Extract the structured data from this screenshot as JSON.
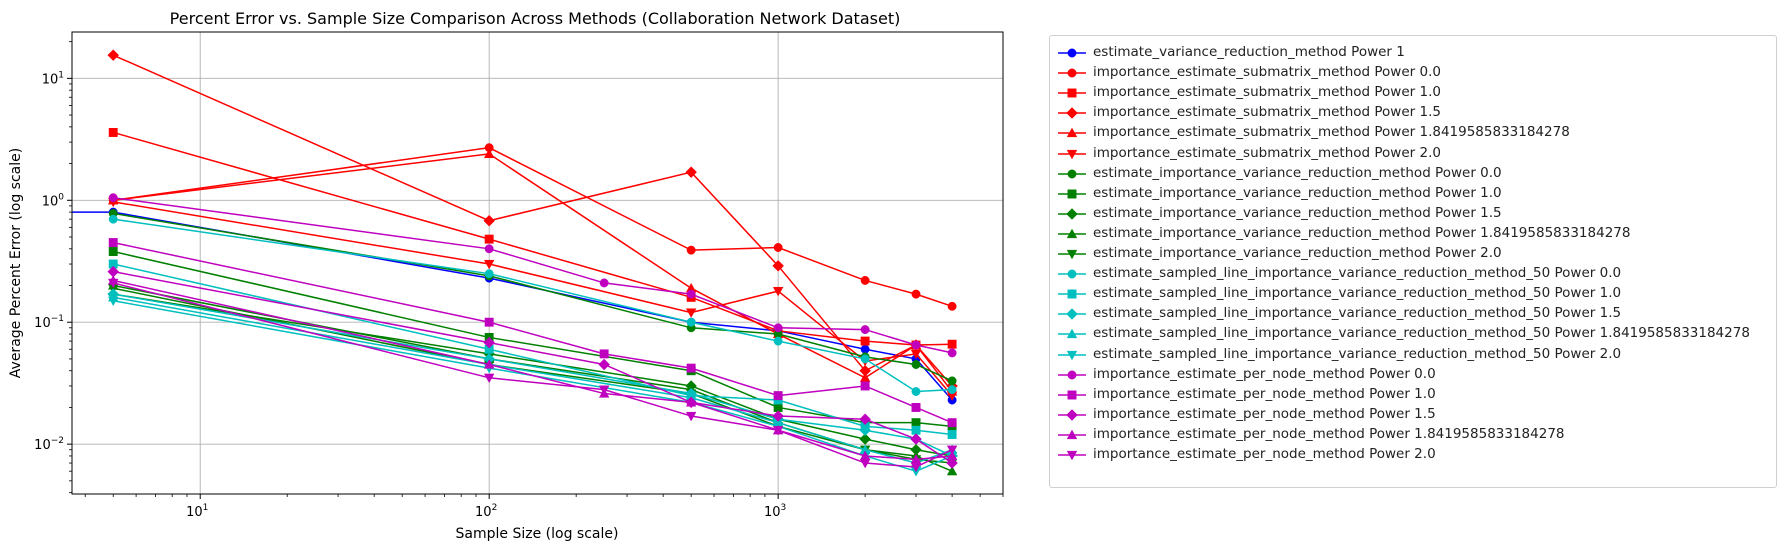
{
  "chart_data": {
    "type": "line",
    "title": "Percent Error vs. Sample Size Comparison Across Methods (Collaboration Network Dataset)",
    "xlabel": "Sample Size (log scale)",
    "ylabel": "Average Percent Error (log scale)",
    "xscale": "log",
    "yscale": "log",
    "xlim": [
      3.6,
      6000
    ],
    "ylim": [
      0.0039,
      24
    ],
    "grid": true,
    "legend_position": "outside-right",
    "x_ticks": [
      {
        "value": 10,
        "base": "10",
        "exp": "1"
      },
      {
        "value": 100,
        "base": "10",
        "exp": "2"
      },
      {
        "value": 1000,
        "base": "10",
        "exp": "3"
      }
    ],
    "y_ticks": [
      {
        "value": 0.01,
        "base": "10",
        "exp": "−2"
      },
      {
        "value": 0.1,
        "base": "10",
        "exp": "−1"
      },
      {
        "value": 1,
        "base": "10",
        "exp": "0"
      },
      {
        "value": 10,
        "base": "10",
        "exp": "1"
      }
    ],
    "series": [
      {
        "name": "estimate_variance_reduction_method Power 1",
        "color": "#0000ff",
        "marker": "circle",
        "x": [
          1,
          5,
          100,
          500,
          1000,
          2000,
          3000,
          4000
        ],
        "y": [
          0.8,
          0.8,
          0.23,
          0.1,
          0.085,
          0.06,
          0.05,
          0.023
        ]
      },
      {
        "name": "importance_estimate_submatrix_method Power 0.0",
        "color": "#ff0000",
        "marker": "circle",
        "x": [
          5,
          100,
          500,
          1000,
          2000,
          3000,
          4000
        ],
        "y": [
          1.0,
          2.7,
          0.39,
          0.41,
          0.22,
          0.17,
          0.135
        ]
      },
      {
        "name": "importance_estimate_submatrix_method Power 1.0",
        "color": "#ff0000",
        "marker": "square",
        "x": [
          5,
          100,
          500,
          1000,
          2000,
          3000,
          4000
        ],
        "y": [
          3.6,
          0.48,
          0.16,
          0.085,
          0.07,
          0.065,
          0.066
        ]
      },
      {
        "name": "importance_estimate_submatrix_method Power 1.5",
        "color": "#ff0000",
        "marker": "diamond",
        "x": [
          5,
          100,
          500,
          1000,
          2000,
          3000,
          4000
        ],
        "y": [
          15.5,
          0.68,
          1.7,
          0.29,
          0.04,
          0.065,
          0.03
        ]
      },
      {
        "name": "importance_estimate_submatrix_method Power 1.8419585833184278",
        "color": "#ff0000",
        "marker": "triangle-up",
        "x": [
          5,
          100,
          500,
          1000,
          2000,
          3000,
          4000
        ],
        "y": [
          1.0,
          2.4,
          0.19,
          0.08,
          0.035,
          0.065,
          0.027
        ]
      },
      {
        "name": "importance_estimate_submatrix_method Power 2.0",
        "color": "#ff0000",
        "marker": "triangle-down",
        "x": [
          5,
          100,
          500,
          1000,
          2000,
          3000,
          4000
        ],
        "y": [
          0.97,
          0.3,
          0.12,
          0.18,
          0.048,
          0.055,
          0.025
        ]
      },
      {
        "name": "estimate_importance_variance_reduction_method Power 0.0",
        "color": "#008000",
        "marker": "circle",
        "x": [
          5,
          100,
          500,
          1000,
          2000,
          3000,
          4000
        ],
        "y": [
          0.78,
          0.24,
          0.09,
          0.08,
          0.052,
          0.045,
          0.033
        ]
      },
      {
        "name": "estimate_importance_variance_reduction_method Power 1.0",
        "color": "#008000",
        "marker": "square",
        "x": [
          5,
          100,
          500,
          1000,
          2000,
          3000,
          4000
        ],
        "y": [
          0.38,
          0.075,
          0.04,
          0.02,
          0.015,
          0.015,
          0.014
        ]
      },
      {
        "name": "estimate_importance_variance_reduction_method Power 1.5",
        "color": "#008000",
        "marker": "diamond",
        "x": [
          5,
          100,
          500,
          1000,
          2000,
          3000,
          4000
        ],
        "y": [
          0.17,
          0.055,
          0.03,
          0.016,
          0.011,
          0.009,
          0.008
        ]
      },
      {
        "name": "estimate_importance_variance_reduction_method Power 1.8419585833184278",
        "color": "#008000",
        "marker": "triangle-up",
        "x": [
          5,
          100,
          500,
          1000,
          2000,
          3000,
          4000
        ],
        "y": [
          0.2,
          0.05,
          0.028,
          0.015,
          0.009,
          0.008,
          0.006
        ]
      },
      {
        "name": "estimate_importance_variance_reduction_method Power 2.0",
        "color": "#008000",
        "marker": "triangle-down",
        "x": [
          5,
          100,
          500,
          1000,
          2000,
          3000,
          4000
        ],
        "y": [
          0.19,
          0.045,
          0.026,
          0.014,
          0.009,
          0.0075,
          0.007
        ]
      },
      {
        "name": "estimate_sampled_line_importance_variance_reduction_method_50 Power 0.0",
        "color": "#00bfbf",
        "marker": "circle",
        "x": [
          5,
          100,
          500,
          1000,
          2000,
          3000,
          4000
        ],
        "y": [
          0.7,
          0.25,
          0.1,
          0.07,
          0.05,
          0.027,
          0.028
        ]
      },
      {
        "name": "estimate_sampled_line_importance_variance_reduction_method_50 Power 1.0",
        "color": "#00bfbf",
        "marker": "square",
        "x": [
          5,
          100,
          500,
          1000,
          2000,
          3000,
          4000
        ],
        "y": [
          0.3,
          0.06,
          0.025,
          0.023,
          0.014,
          0.013,
          0.012
        ]
      },
      {
        "name": "estimate_sampled_line_importance_variance_reduction_method_50 Power 1.5",
        "color": "#00bfbf",
        "marker": "diamond",
        "x": [
          5,
          100,
          500,
          1000,
          2000,
          3000,
          4000
        ],
        "y": [
          0.17,
          0.05,
          0.026,
          0.016,
          0.013,
          0.011,
          0.008
        ]
      },
      {
        "name": "estimate_sampled_line_importance_variance_reduction_method_50 Power 1.8419585833184278",
        "color": "#00bfbf",
        "marker": "triangle-up",
        "x": [
          5,
          100,
          500,
          1000,
          2000,
          3000,
          4000
        ],
        "y": [
          0.16,
          0.045,
          0.024,
          0.015,
          0.009,
          0.007,
          0.009
        ]
      },
      {
        "name": "estimate_sampled_line_importance_variance_reduction_method_50 Power 2.0",
        "color": "#00bfbf",
        "marker": "triangle-down",
        "x": [
          5,
          100,
          500,
          1000,
          2000,
          3000,
          4000
        ],
        "y": [
          0.15,
          0.042,
          0.022,
          0.014,
          0.008,
          0.006,
          0.008
        ]
      },
      {
        "name": "importance_estimate_per_node_method Power 0.0",
        "color": "#bf00bf",
        "marker": "circle",
        "x": [
          5,
          100,
          250,
          500,
          1000,
          2000,
          3000,
          4000
        ],
        "y": [
          1.05,
          0.4,
          0.21,
          0.17,
          0.09,
          0.087,
          0.065,
          0.056
        ]
      },
      {
        "name": "importance_estimate_per_node_method Power 1.0",
        "color": "#bf00bf",
        "marker": "square",
        "x": [
          5,
          100,
          250,
          500,
          1000,
          2000,
          3000,
          4000
        ],
        "y": [
          0.45,
          0.1,
          0.055,
          0.042,
          0.025,
          0.03,
          0.02,
          0.015
        ]
      },
      {
        "name": "importance_estimate_per_node_method Power 1.5",
        "color": "#bf00bf",
        "marker": "diamond",
        "x": [
          5,
          100,
          250,
          500,
          1000,
          2000,
          3000,
          4000
        ],
        "y": [
          0.26,
          0.068,
          0.045,
          0.022,
          0.017,
          0.016,
          0.011,
          0.007
        ]
      },
      {
        "name": "importance_estimate_per_node_method Power 1.8419585833184278",
        "color": "#bf00bf",
        "marker": "triangle-up",
        "x": [
          5,
          100,
          250,
          500,
          1000,
          2000,
          3000,
          4000
        ],
        "y": [
          0.22,
          0.045,
          0.026,
          0.022,
          0.013,
          0.008,
          0.0075,
          0.008
        ]
      },
      {
        "name": "importance_estimate_per_node_method Power 2.0",
        "color": "#bf00bf",
        "marker": "triangle-down",
        "x": [
          5,
          100,
          250,
          500,
          1000,
          2000,
          3000,
          4000
        ],
        "y": [
          0.21,
          0.035,
          0.028,
          0.017,
          0.013,
          0.007,
          0.0065,
          0.009
        ]
      }
    ]
  }
}
